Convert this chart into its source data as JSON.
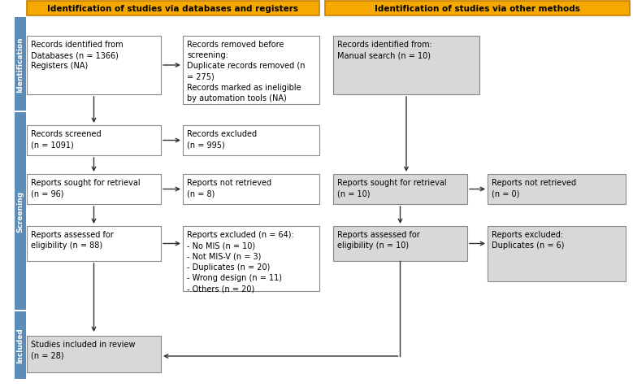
{
  "title_left": "Identification of studies via databases and registers",
  "title_right": "Identification of studies via other methods",
  "title_bg": "#F5A800",
  "title_border": "#C88000",
  "white_box_bg": "#FFFFFF",
  "gray_box_bg": "#D8D8D8",
  "sidebar_color": "#5B8DB8",
  "box_edge": "#888888",
  "arrow_color": "#333333",
  "boxes": {
    "records_identified": "Records identified from\nDatabases (n = 1366)\nRegisters (NA)",
    "records_removed": "Records removed before\nscreening:\nDuplicate records removed (n\n= 275)\nRecords marked as ineligible\nby automation tools (NA)",
    "records_identified_other": "Records identified from:\nManual search (n = 10)",
    "records_screened": "Records screened\n(n = 1091)",
    "records_excluded": "Records excluded\n(n = 995)",
    "reports_retrieval_left": "Reports sought for retrieval\n(n = 96)",
    "reports_not_retrieved_left": "Reports not retrieved\n(n = 8)",
    "reports_retrieval_right": "Reports sought for retrieval\n(n = 10)",
    "reports_not_retrieved_right": "Reports not retrieved\n(n = 0)",
    "reports_assessed_left": "Reports assessed for\neligibility (n = 88)",
    "reports_excluded": "Reports excluded (n = 64):\n- No MIS (n = 10)\n- Not MIS-V (n = 3)\n- Duplicates (n = 20)\n- Wrong design (n = 11)\n- Others (n = 20)",
    "reports_assessed_right": "Reports assessed for\neligibility (n = 10)",
    "reports_excluded_right": "Reports excluded:\nDuplicates (n = 6)",
    "studies_included": "Studies included in review\n(n = 28)"
  },
  "font_size": 7.0
}
